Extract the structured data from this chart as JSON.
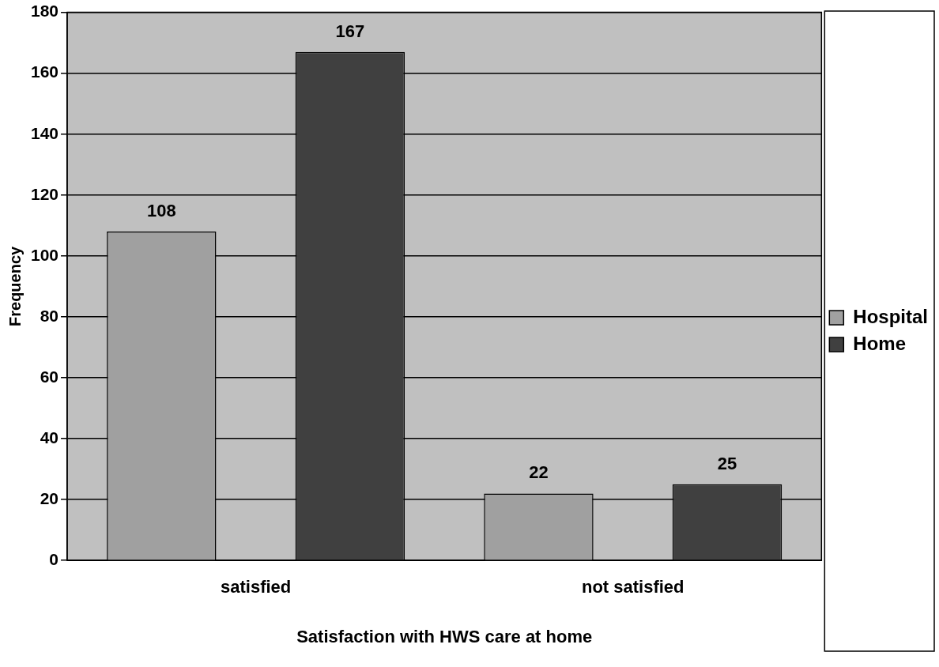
{
  "chart_data": {
    "type": "bar",
    "xlabel": "Satisfaction with HWS care at home",
    "ylabel": "Frequency",
    "categories": [
      "satisfied",
      "not satisfied"
    ],
    "series": [
      {
        "name": "Hospital",
        "color": "#a0a0a0",
        "values": [
          108,
          22
        ]
      },
      {
        "name": "Home",
        "color": "#404040",
        "values": [
          167,
          25
        ]
      }
    ],
    "ylim": [
      0,
      180
    ],
    "yticks": [
      0,
      20,
      40,
      60,
      80,
      100,
      120,
      140,
      160,
      180
    ],
    "grid": "y",
    "legend": "right",
    "data_labels": true
  }
}
